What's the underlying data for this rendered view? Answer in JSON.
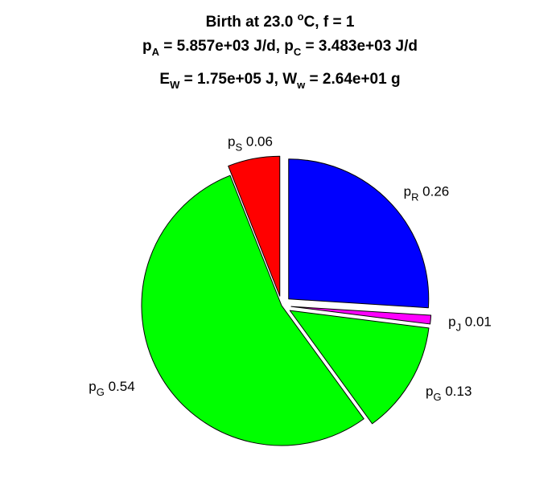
{
  "chart_data": {
    "type": "pie",
    "title": {
      "line1": {
        "text": "Birth at 23.0 ",
        "sup": "o",
        "tail": "C, f = 1"
      },
      "line2": [
        {
          "base": "p",
          "sub": "A",
          "text": " = 5.857e+03 J/d, "
        },
        {
          "base": "p",
          "sub": "C",
          "text": " = 3.483e+03 J/d"
        }
      ],
      "line3": [
        {
          "base": "E",
          "sub": "W",
          "text": " = 1.75e+05 J, "
        },
        {
          "base": "W",
          "sub": "w",
          "text": " = 2.64e+01 g"
        }
      ]
    },
    "slices": [
      {
        "base": "p",
        "sub": "R",
        "value_label": "0.26",
        "value": 0.26,
        "color": "#0000ff",
        "exploded": true
      },
      {
        "base": "p",
        "sub": "J",
        "value_label": "0.01",
        "value": 0.01,
        "color": "#ff00ff",
        "exploded": true
      },
      {
        "base": "p",
        "sub": "G",
        "value_label": "0.13",
        "value": 0.13,
        "color": "#00ff00",
        "exploded": true
      },
      {
        "base": "p",
        "sub": "G",
        "value_label": "0.54",
        "value": 0.54,
        "color": "#00ff00",
        "exploded": false
      },
      {
        "base": "p",
        "sub": "S",
        "value_label": "0.06",
        "value": 0.06,
        "color": "#ff0000",
        "exploded": true
      }
    ],
    "start": "top",
    "direction": "clockwise"
  }
}
